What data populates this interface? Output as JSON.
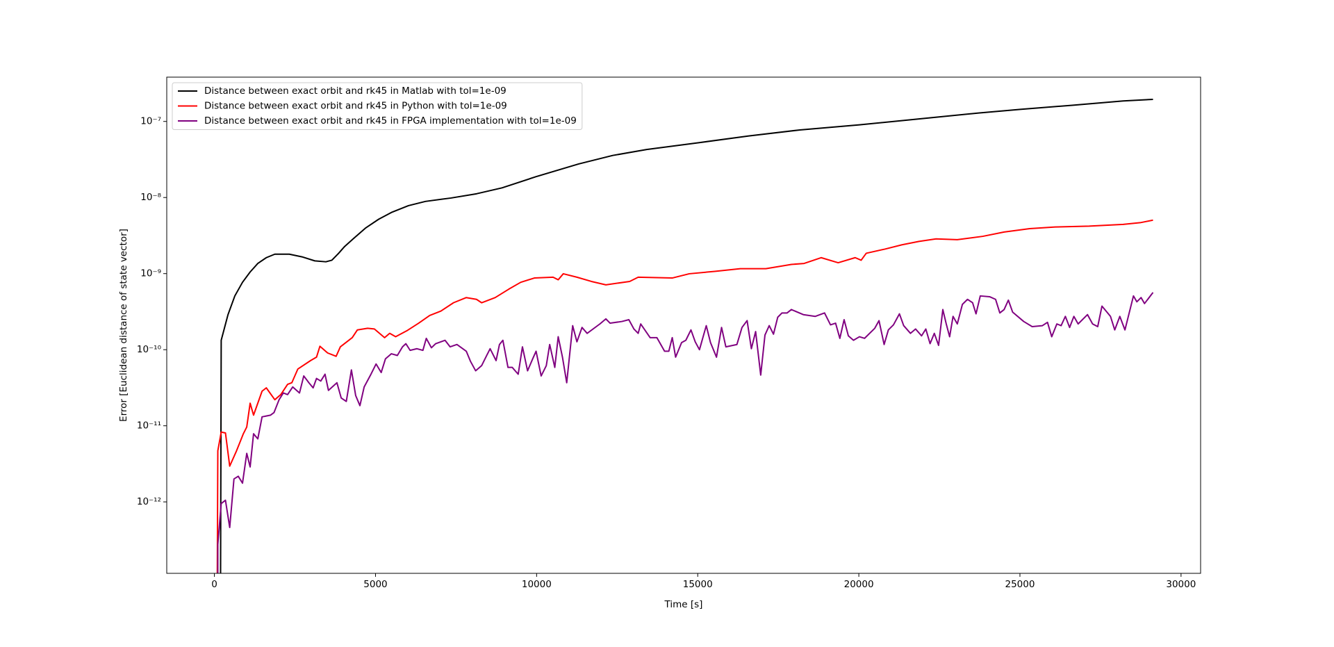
{
  "chart_data": {
    "type": "line",
    "xlabel": "Time [s]",
    "ylabel": "Error [Euclidean distance of state vector]",
    "yscale": "log",
    "legend": "upper left",
    "xlim": [
      -1479,
      30607
    ],
    "ylim": [
      1.15e-13,
      3.82e-07
    ],
    "xticks": [
      0,
      5000,
      10000,
      15000,
      20000,
      25000,
      30000
    ],
    "yticks": [
      {
        "value": 1e-12,
        "label": "10⁻¹²"
      },
      {
        "value": 1e-11,
        "label": "10⁻¹¹"
      },
      {
        "value": 1e-10,
        "label": "10⁻¹⁰"
      },
      {
        "value": 1e-09,
        "label": "10⁻⁹"
      },
      {
        "value": 1e-08,
        "label": "10⁻⁸"
      },
      {
        "value": 1e-07,
        "label": "10⁻⁷"
      }
    ],
    "series": [
      {
        "name": "Distance between exact orbit and rk45 in Matlab with tol=1e-09",
        "color": "#000000",
        "x": [
          185,
          211,
          422,
          634,
          872,
          1109,
          1347,
          1611,
          1875,
          2324,
          2720,
          3116,
          3459,
          3645,
          3856,
          4041,
          4305,
          4701,
          5097,
          5493,
          6021,
          6550,
          7342,
          8134,
          8927,
          9983,
          11303,
          12360,
          13416,
          15027,
          16585,
          18170,
          20019,
          21867,
          23716,
          25010,
          26621,
          28205,
          29130
        ],
        "values": [
          1e-14,
          1.33e-10,
          2.89e-10,
          5.09e-10,
          7.69e-10,
          1.05e-09,
          1.36e-09,
          1.62e-09,
          1.8e-09,
          1.8e-09,
          1.66e-09,
          1.47e-09,
          1.43e-09,
          1.5e-09,
          1.85e-09,
          2.27e-09,
          2.86e-09,
          4e-09,
          5.18e-09,
          6.36e-09,
          7.82e-09,
          8.89e-09,
          9.85e-09,
          1.12e-08,
          1.34e-08,
          1.88e-08,
          2.76e-08,
          3.57e-08,
          4.28e-08,
          5.25e-08,
          6.45e-08,
          7.73e-08,
          9.02e-08,
          1.08e-07,
          1.29e-07,
          1.44e-07,
          1.63e-07,
          1.86e-07,
          1.95e-07
        ]
      },
      {
        "name": "Distance between exact orbit and rk45 in Python with tol=1e-09",
        "color": "#ff0000",
        "x": [
          79,
          106,
          211,
          343,
          475,
          687,
          898,
          1004,
          1109,
          1215,
          1479,
          1611,
          1875,
          2060,
          2271,
          2403,
          2588,
          2984,
          3169,
          3275,
          3513,
          3777,
          3909,
          4278,
          4437,
          4754,
          4965,
          5282,
          5440,
          5625,
          5969,
          6338,
          6682,
          7025,
          7421,
          7817,
          8134,
          8293,
          8715,
          9138,
          9508,
          9930,
          10511,
          10670,
          10828,
          11251,
          11700,
          12149,
          12888,
          13152,
          14209,
          14737,
          15529,
          16321,
          17114,
          17906,
          18302,
          18830,
          19358,
          19887,
          20072,
          20230,
          20811,
          21339,
          21867,
          22396,
          23056,
          23848,
          24509,
          25301,
          26093,
          27149,
          28205,
          28734,
          29130
        ],
        "values": [
          1e-14,
          4.69e-12,
          8.27e-12,
          8.05e-12,
          2.95e-12,
          4.69e-12,
          7.85e-12,
          9.64e-12,
          1.98e-11,
          1.38e-11,
          2.85e-11,
          3.15e-11,
          2.2e-11,
          2.57e-11,
          3.5e-11,
          3.68e-11,
          5.56e-11,
          7.19e-11,
          7.98e-11,
          1.11e-10,
          9.06e-11,
          8.18e-11,
          1.09e-10,
          1.44e-10,
          1.82e-10,
          1.91e-10,
          1.87e-10,
          1.44e-10,
          1.64e-10,
          1.48e-10,
          1.77e-10,
          2.23e-10,
          2.82e-10,
          3.21e-10,
          4.14e-10,
          4.84e-10,
          4.59e-10,
          4.14e-10,
          4.84e-10,
          6.25e-10,
          7.69e-10,
          8.75e-10,
          8.97e-10,
          8.3e-10,
          9.95e-10,
          8.97e-10,
          7.89e-10,
          7.12e-10,
          7.89e-10,
          8.97e-10,
          8.75e-10,
          9.95e-10,
          1.07e-09,
          1.16e-09,
          1.16e-09,
          1.32e-09,
          1.36e-09,
          1.62e-09,
          1.39e-09,
          1.62e-09,
          1.5e-09,
          1.85e-09,
          2.1e-09,
          2.39e-09,
          2.65e-09,
          2.86e-09,
          2.79e-09,
          3.09e-09,
          3.52e-09,
          3.9e-09,
          4.1e-09,
          4.21e-09,
          4.43e-09,
          4.67e-09,
          5.04e-09
        ]
      },
      {
        "name": "Distance between exact orbit and rk45 in FPGA implementation with tol=1e-09",
        "color": "#800080",
        "x": [
          106,
          106,
          211,
          343,
          475,
          607,
          740,
          872,
          1004,
          1109,
          1215,
          1347,
          1479,
          1743,
          1849,
          2007,
          2139,
          2271,
          2430,
          2641,
          2773,
          2932,
          3064,
          3169,
          3301,
          3433,
          3539,
          3803,
          3935,
          4094,
          4252,
          4384,
          4516,
          4648,
          4859,
          5018,
          5176,
          5308,
          5493,
          5678,
          5837,
          5942,
          6074,
          6286,
          6471,
          6576,
          6735,
          6867,
          7157,
          7316,
          7527,
          7817,
          7949,
          8108,
          8293,
          8451,
          8557,
          8742,
          8847,
          8953,
          9111,
          9244,
          9428,
          9560,
          9719,
          9877,
          9983,
          10141,
          10300,
          10406,
          10564,
          10670,
          10802,
          10934,
          11119,
          11251,
          11409,
          11568,
          11964,
          12149,
          12281,
          12650,
          12862,
          13020,
          13152,
          13231,
          13522,
          13733,
          13971,
          14103,
          14209,
          14314,
          14499,
          14631,
          14790,
          14922,
          15054,
          15265,
          15397,
          15582,
          15740,
          15873,
          16216,
          16374,
          16533,
          16665,
          16797,
          16955,
          17087,
          17219,
          17351,
          17483,
          17615,
          17774,
          17906,
          18276,
          18645,
          18936,
          19121,
          19279,
          19411,
          19543,
          19675,
          19834,
          20019,
          20177,
          20494,
          20626,
          20785,
          20917,
          21075,
          21260,
          21392,
          21603,
          21762,
          21947,
          22079,
          22211,
          22343,
          22475,
          22607,
          22713,
          22818,
          22924,
          23056,
          23214,
          23373,
          23531,
          23637,
          23769,
          24059,
          24244,
          24376,
          24509,
          24641,
          24773,
          25116,
          25380,
          25697,
          25855,
          25987,
          26146,
          26278,
          26410,
          26542,
          26674,
          26806,
          27097,
          27255,
          27414,
          27546,
          27810,
          27942,
          28100,
          28259,
          28523,
          28628,
          28760,
          28866,
          29130
        ],
        "values": [
          1e-14,
          2.76e-13,
          9.5e-13,
          1.05e-12,
          4.61e-13,
          2e-12,
          2.17e-12,
          1.76e-12,
          4.34e-12,
          2.88e-12,
          7.85e-12,
          6.73e-12,
          1.31e-11,
          1.38e-11,
          1.49e-11,
          2.2e-11,
          2.7e-11,
          2.57e-11,
          3.24e-11,
          2.7e-11,
          4.52e-11,
          3.68e-11,
          3.15e-11,
          4.19e-11,
          3.87e-11,
          4.76e-11,
          2.92e-11,
          3.68e-11,
          2.32e-11,
          2.09e-11,
          5.42e-11,
          2.5e-11,
          1.84e-11,
          3.24e-11,
          4.76e-11,
          6.49e-11,
          5.01e-11,
          7.57e-11,
          8.84e-11,
          8.4e-11,
          1.09e-10,
          1.2e-10,
          9.8e-11,
          1.03e-10,
          9.8e-11,
          1.41e-10,
          1.06e-10,
          1.2e-10,
          1.33e-10,
          1.09e-10,
          1.17e-10,
          9.55e-11,
          7.01e-11,
          5.28e-11,
          6.17e-11,
          8.4e-11,
          1.03e-10,
          7.19e-11,
          1.17e-10,
          1.33e-10,
          5.85e-11,
          5.85e-11,
          4.76e-11,
          1.09e-10,
          5.28e-11,
          7.57e-11,
          9.55e-11,
          4.52e-11,
          6.17e-11,
          1.17e-10,
          5.85e-11,
          1.48e-10,
          7.98e-11,
          3.68e-11,
          2.07e-10,
          1.27e-10,
          1.96e-10,
          1.64e-10,
          2.18e-10,
          2.54e-10,
          2.23e-10,
          2.35e-10,
          2.48e-10,
          1.87e-10,
          1.64e-10,
          2.18e-10,
          1.44e-10,
          1.44e-10,
          9.55e-11,
          9.55e-11,
          1.44e-10,
          7.98e-11,
          1.24e-10,
          1.33e-10,
          1.82e-10,
          1.27e-10,
          1e-10,
          2.07e-10,
          1.24e-10,
          7.98e-11,
          1.96e-10,
          1.09e-10,
          1.17e-10,
          1.96e-10,
          2.41e-10,
          1.03e-10,
          1.73e-10,
          4.64e-11,
          1.56e-10,
          2.07e-10,
          1.6e-10,
          2.67e-10,
          3.04e-10,
          3.04e-10,
          3.37e-10,
          2.89e-10,
          2.74e-10,
          3.04e-10,
          2.12e-10,
          2.23e-10,
          1.41e-10,
          2.48e-10,
          1.52e-10,
          1.33e-10,
          1.48e-10,
          1.41e-10,
          1.91e-10,
          2.41e-10,
          1.17e-10,
          1.82e-10,
          2.12e-10,
          2.96e-10,
          2.07e-10,
          1.64e-10,
          1.87e-10,
          1.52e-10,
          1.87e-10,
          1.2e-10,
          1.64e-10,
          1.14e-10,
          3.37e-10,
          2.18e-10,
          1.48e-10,
          2.74e-10,
          2.18e-10,
          3.94e-10,
          4.59e-10,
          4.14e-10,
          2.96e-10,
          5.09e-10,
          4.97e-10,
          4.59e-10,
          3.04e-10,
          3.37e-10,
          4.48e-10,
          3.12e-10,
          2.35e-10,
          2.01e-10,
          2.07e-10,
          2.29e-10,
          1.48e-10,
          2.18e-10,
          2.07e-10,
          2.74e-10,
          1.96e-10,
          2.74e-10,
          2.18e-10,
          2.89e-10,
          2.18e-10,
          2.01e-10,
          3.74e-10,
          2.74e-10,
          1.82e-10,
          2.74e-10,
          1.82e-10,
          5.09e-10,
          4.26e-10,
          4.84e-10,
          4.04e-10,
          5.65e-10
        ]
      }
    ]
  }
}
